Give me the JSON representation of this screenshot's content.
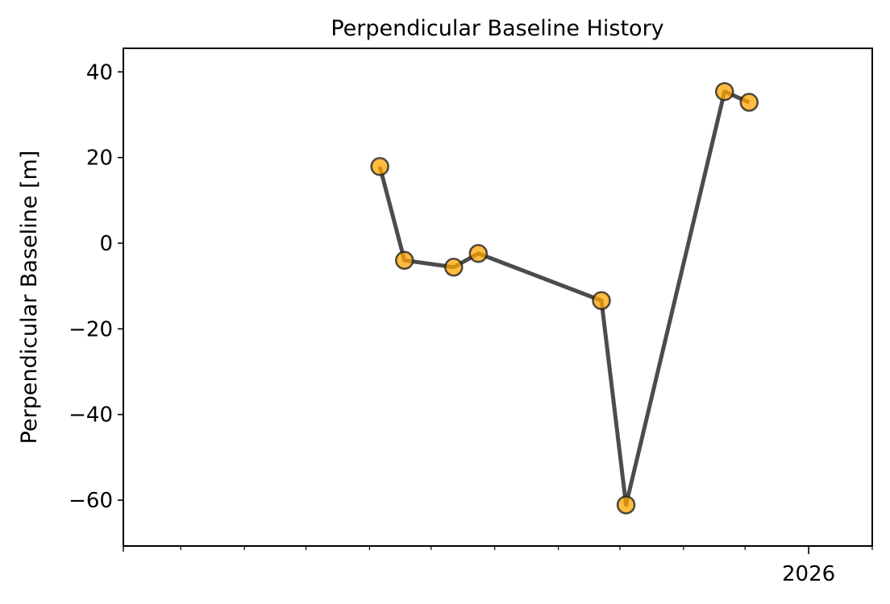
{
  "chart_data": {
    "type": "line",
    "title": "Perpendicular Baseline History",
    "xlabel": "",
    "ylabel": "Perpendicular Baseline [m]",
    "x": [
      "2025-06-06",
      "2025-06-18",
      "2025-07-12",
      "2025-07-24",
      "2025-09-22",
      "2025-10-04",
      "2025-11-21",
      "2025-12-03"
    ],
    "series": [
      {
        "name": "Perpendicular Baseline",
        "values": [
          17.9,
          -4.0,
          -5.6,
          -2.4,
          -13.4,
          -61.1,
          35.4,
          32.9
        ]
      }
    ],
    "xlim": [
      "2025-02-01",
      "2026-02-01"
    ],
    "ylim": [
      -70.7,
      45.5
    ],
    "yticks": [
      40,
      20,
      0,
      -20,
      -40,
      -60
    ],
    "ytick_labels": [
      "40",
      "20",
      "0",
      "−20",
      "−40",
      "−60"
    ],
    "xticks_minor": [
      "2025-03-01",
      "2025-04-01",
      "2025-05-01",
      "2025-06-01",
      "2025-07-01",
      "2025-08-01",
      "2025-09-01",
      "2025-10-01",
      "2025-11-01",
      "2025-12-01",
      "2026-02-01"
    ],
    "xticks_major": [
      "2026-01-01"
    ],
    "xtick_labels": [
      "2026"
    ],
    "grid": false,
    "colors": {
      "line": "#333333",
      "marker": "#ffa500",
      "marker_edge": "#222222"
    }
  }
}
